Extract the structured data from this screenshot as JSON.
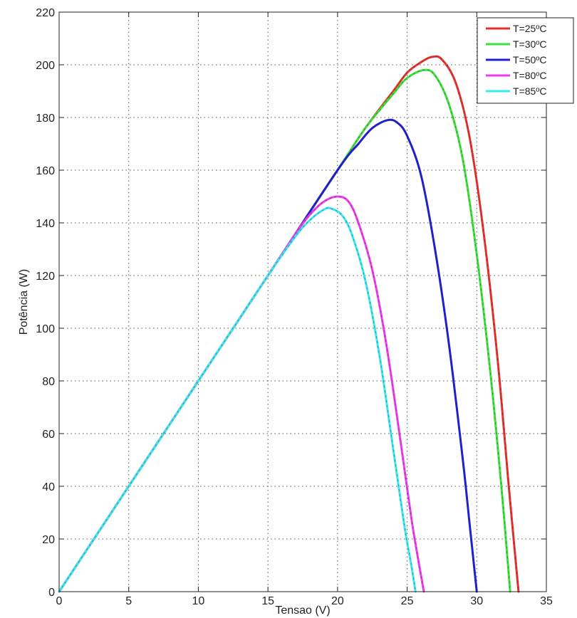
{
  "chart_data": {
    "type": "line",
    "title": "",
    "xlabel": "Tensao (V)",
    "ylabel": "Potência (W)",
    "xlim": [
      0,
      35
    ],
    "ylim": [
      0,
      220
    ],
    "xticks": [
      0,
      5,
      10,
      15,
      20,
      25,
      30,
      35
    ],
    "yticks": [
      0,
      20,
      40,
      60,
      80,
      100,
      120,
      140,
      160,
      180,
      200,
      220
    ],
    "grid": true,
    "legend_position": "top-right",
    "series": [
      {
        "name": "T=25ºC",
        "color": "#e8312c",
        "x": [
          0,
          5,
          10,
          15,
          20,
          22,
          24,
          25,
          26,
          26.8,
          27.5,
          28.5,
          29.5,
          30.5,
          31.5,
          32.3,
          33
        ],
        "y": [
          0,
          40,
          80,
          120,
          160,
          176,
          190,
          197,
          201,
          203,
          202,
          193,
          172,
          136,
          88,
          40,
          0
        ]
      },
      {
        "name": "T=30ºC",
        "color": "#3ce13c",
        "x": [
          0,
          5,
          10,
          15,
          20,
          22,
          24,
          25,
          26.2,
          27,
          28,
          29,
          30,
          31,
          31.8,
          32.4
        ],
        "y": [
          0,
          40,
          80,
          120,
          160,
          176,
          189,
          195,
          198,
          196,
          185,
          164,
          128,
          82,
          38,
          0
        ]
      },
      {
        "name": "T=50ºC",
        "color": "#1f1fd6",
        "x": [
          0,
          5,
          10,
          15,
          20,
          21.5,
          22.5,
          23.6,
          24.3,
          25,
          26,
          27,
          28,
          29,
          29.5,
          30
        ],
        "y": [
          0,
          40,
          80,
          120,
          160,
          170,
          176,
          179,
          178,
          173,
          158,
          130,
          94,
          50,
          25,
          0
        ]
      },
      {
        "name": "T=80ºC",
        "color": "#f03cf0",
        "x": [
          0,
          5,
          10,
          15,
          17,
          18,
          19,
          20,
          20.8,
          21.5,
          22.5,
          23.5,
          24.5,
          25.3,
          25.8,
          26.2
        ],
        "y": [
          0,
          40,
          80,
          120,
          136,
          143,
          148,
          150,
          148,
          140,
          122,
          94,
          58,
          28,
          12,
          0
        ]
      },
      {
        "name": "T=85ºC",
        "color": "#39e8f0",
        "x": [
          0,
          5,
          10,
          15,
          17,
          18,
          19,
          19.5,
          20.3,
          21,
          22,
          23,
          24,
          24.8,
          25.3,
          25.6
        ],
        "y": [
          0,
          40,
          80,
          120,
          135,
          141,
          145,
          145.5,
          143,
          136,
          118,
          90,
          54,
          25,
          10,
          0
        ]
      }
    ]
  }
}
